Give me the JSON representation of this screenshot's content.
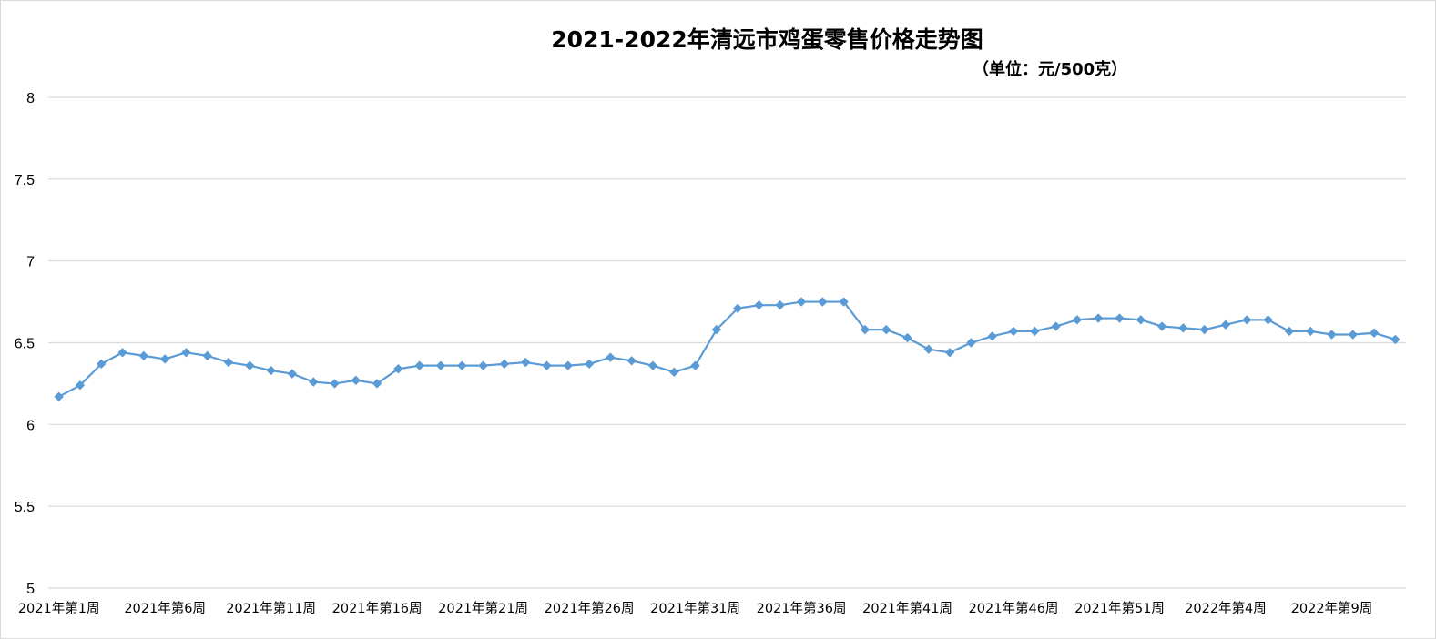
{
  "colors": {
    "series": "#5b9bd5",
    "grid": "#d9d9d9",
    "text": "#000000"
  },
  "chart_data": {
    "type": "line",
    "title": "2021-2022年清远市鸡蛋零售价格走势图",
    "subtitle": "（单位：元/500克）",
    "ylim": [
      5,
      8
    ],
    "yticks": [
      5,
      5.5,
      6,
      6.5,
      7,
      7.5,
      8
    ],
    "grid": true,
    "legend": "none",
    "marker": "diamond",
    "xtick_labels": [
      "2021年第1周",
      "2021年第6周",
      "2021年第11周",
      "2021年第16周",
      "2021年第21周",
      "2021年第26周",
      "2021年第31周",
      "2021年第36周",
      "2021年第41周",
      "2021年第46周",
      "2021年第51周",
      "2022年第4周",
      "2022年第9周"
    ],
    "xtick_every": 5,
    "series": [
      {
        "values": [
          6.17,
          6.24,
          6.37,
          6.44,
          6.42,
          6.4,
          6.44,
          6.42,
          6.38,
          6.36,
          6.33,
          6.31,
          6.26,
          6.25,
          6.27,
          6.25,
          6.34,
          6.36,
          6.36,
          6.36,
          6.36,
          6.37,
          6.38,
          6.36,
          6.36,
          6.37,
          6.41,
          6.39,
          6.36,
          6.32,
          6.36,
          6.58,
          6.71,
          6.73,
          6.73,
          6.75,
          6.75,
          6.75,
          6.58,
          6.58,
          6.53,
          6.46,
          6.44,
          6.5,
          6.54,
          6.57,
          6.57,
          6.6,
          6.64,
          6.65,
          6.65,
          6.64,
          6.6,
          6.59,
          6.58,
          6.61,
          6.64,
          6.64,
          6.57,
          6.57,
          6.55,
          6.55,
          6.56,
          6.52
        ]
      }
    ]
  }
}
